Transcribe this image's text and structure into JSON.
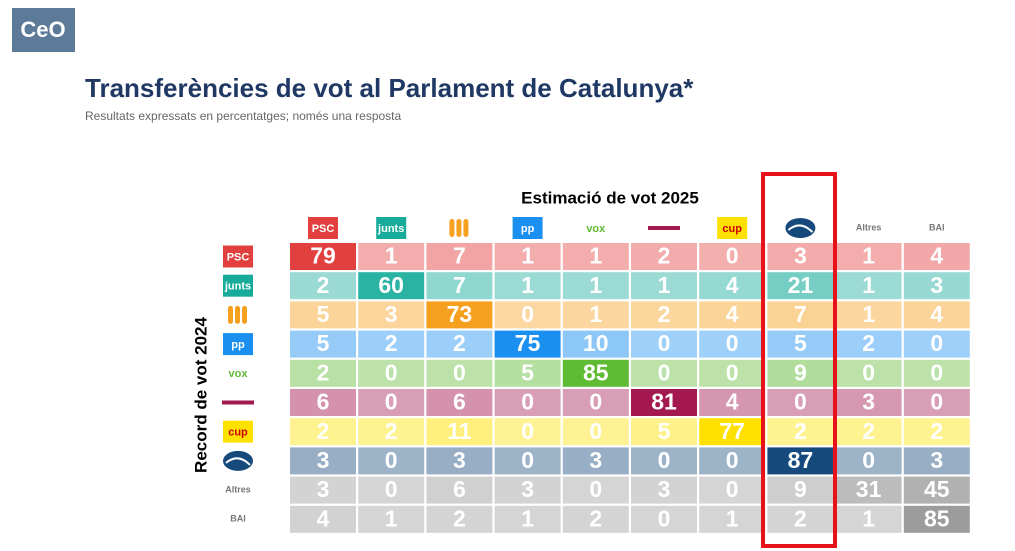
{
  "logo": "CeO",
  "chart_data": {
    "type": "heatmap",
    "title": "Transferències de vot al Parlament de Catalunya*",
    "subtitle": "Resultats expressats en percentatges; només una resposta",
    "x_label": "Estimació de vot 2025",
    "y_label": "Record de vot 2024",
    "columns": [
      "PSC",
      "junts",
      null,
      "pp",
      "vox",
      null,
      "cup",
      null,
      "Altres",
      "BAI"
    ],
    "highlight_color": "#e8121b",
    "series": [
      {
        "name": "PSC",
        "color": "#e2403f",
        "values": [
          79,
          1,
          7,
          1,
          1,
          2,
          0,
          3,
          1,
          4
        ]
      },
      {
        "name": "junts",
        "color": "#17ab9b",
        "values": [
          2,
          60,
          7,
          1,
          1,
          1,
          4,
          21,
          1,
          3
        ]
      },
      {
        "name": null,
        "color": "#f5a11f",
        "values": [
          5,
          3,
          73,
          0,
          1,
          2,
          4,
          7,
          1,
          4
        ]
      },
      {
        "name": "pp",
        "color": "#1b8ff0",
        "values": [
          5,
          2,
          2,
          75,
          10,
          0,
          0,
          5,
          2,
          0
        ]
      },
      {
        "name": "vox",
        "color": "#5fbb34",
        "values": [
          2,
          0,
          0,
          5,
          85,
          0,
          0,
          9,
          0,
          0
        ]
      },
      {
        "name": null,
        "color": "#a3184e",
        "values": [
          6,
          0,
          6,
          0,
          0,
          81,
          4,
          0,
          3,
          0
        ]
      },
      {
        "name": "cup",
        "color": "#ffe100",
        "values": [
          2,
          2,
          11,
          0,
          0,
          5,
          77,
          2,
          2,
          2
        ]
      },
      {
        "name": null,
        "color": "#164a7d",
        "values": [
          3,
          0,
          3,
          0,
          3,
          0,
          0,
          87,
          0,
          3
        ]
      },
      {
        "name": "Altres",
        "color": "#9c9c9c",
        "values": [
          3,
          0,
          6,
          3,
          0,
          3,
          0,
          9,
          31,
          45
        ]
      },
      {
        "name": "BAI",
        "color": "#9c9c9c",
        "values": [
          4,
          1,
          2,
          1,
          2,
          0,
          1,
          2,
          1,
          85
        ]
      }
    ]
  }
}
